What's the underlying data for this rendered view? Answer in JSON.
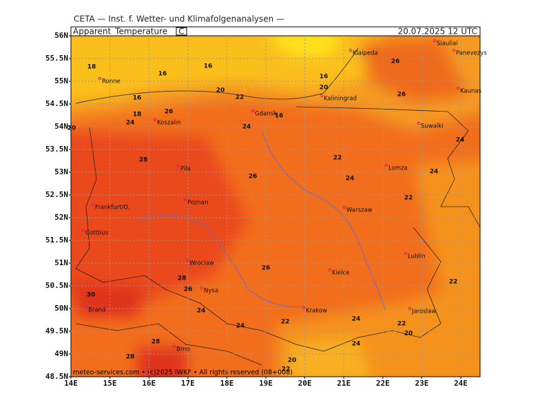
{
  "header": {
    "source": "CETA — Inst. f. Wetter- und Klimafolgenanalysen —",
    "parameter": "Apparent_Temperature",
    "unit": "C",
    "valid": "20.07.2025  12 UTC"
  },
  "map": {
    "lat_ticks": [
      {
        "value": 56,
        "label": "56N"
      },
      {
        "value": 55.5,
        "label": "55.5N"
      },
      {
        "value": 55,
        "label": "55N"
      },
      {
        "value": 54.5,
        "label": "54.5N"
      },
      {
        "value": 54,
        "label": "54N"
      },
      {
        "value": 53.5,
        "label": "53.5N"
      },
      {
        "value": 53,
        "label": "53N"
      },
      {
        "value": 52.5,
        "label": "52.5N"
      },
      {
        "value": 52,
        "label": "52N"
      },
      {
        "value": 51.5,
        "label": "51.5N"
      },
      {
        "value": 51,
        "label": "51N"
      },
      {
        "value": 50.5,
        "label": "50.5N"
      },
      {
        "value": 50,
        "label": "50N"
      },
      {
        "value": 49.5,
        "label": "49.5N"
      },
      {
        "value": 49,
        "label": "49N"
      },
      {
        "value": 48.5,
        "label": "48.5N"
      }
    ],
    "lon_ticks": [
      {
        "value": 14,
        "label": "14E"
      },
      {
        "value": 15,
        "label": "15E"
      },
      {
        "value": 16,
        "label": "16E"
      },
      {
        "value": 17,
        "label": "17E"
      },
      {
        "value": 18,
        "label": "18E"
      },
      {
        "value": 19,
        "label": "19E"
      },
      {
        "value": 20,
        "label": "20E"
      },
      {
        "value": 21,
        "label": "21E"
      },
      {
        "value": 22,
        "label": "22E"
      },
      {
        "value": 23,
        "label": "23E"
      },
      {
        "value": 24,
        "label": "24E"
      }
    ],
    "cities": [
      "Siauliai",
      "Panevezys",
      "Klaipeda",
      "Kaunas",
      "Ronne",
      "Kaliningrad",
      "Gdansk",
      "Koszalin",
      "Suwalki",
      "Pila",
      "Lomza",
      "Frankfurt/O.",
      "Poznan",
      "Warszaw",
      "Cottbus",
      "Lublin",
      "Wroclaw",
      "Kielce",
      "Nysa",
      "Brand",
      "Krakow",
      "Jaroslaw",
      "Brno"
    ],
    "contour_labels": [
      16,
      18,
      16,
      16,
      20,
      26,
      20,
      22,
      16,
      26,
      18,
      26,
      16,
      24,
      24,
      20,
      28,
      22,
      26,
      24,
      24,
      24,
      22,
      26,
      28,
      26,
      24,
      30,
      22,
      22,
      24,
      24,
      22,
      20,
      24,
      28,
      28,
      20,
      22
    ],
    "footer": "meteo-services.com  •  (c)2025 IWKF  •  All rights reserved (08+008)"
  }
}
